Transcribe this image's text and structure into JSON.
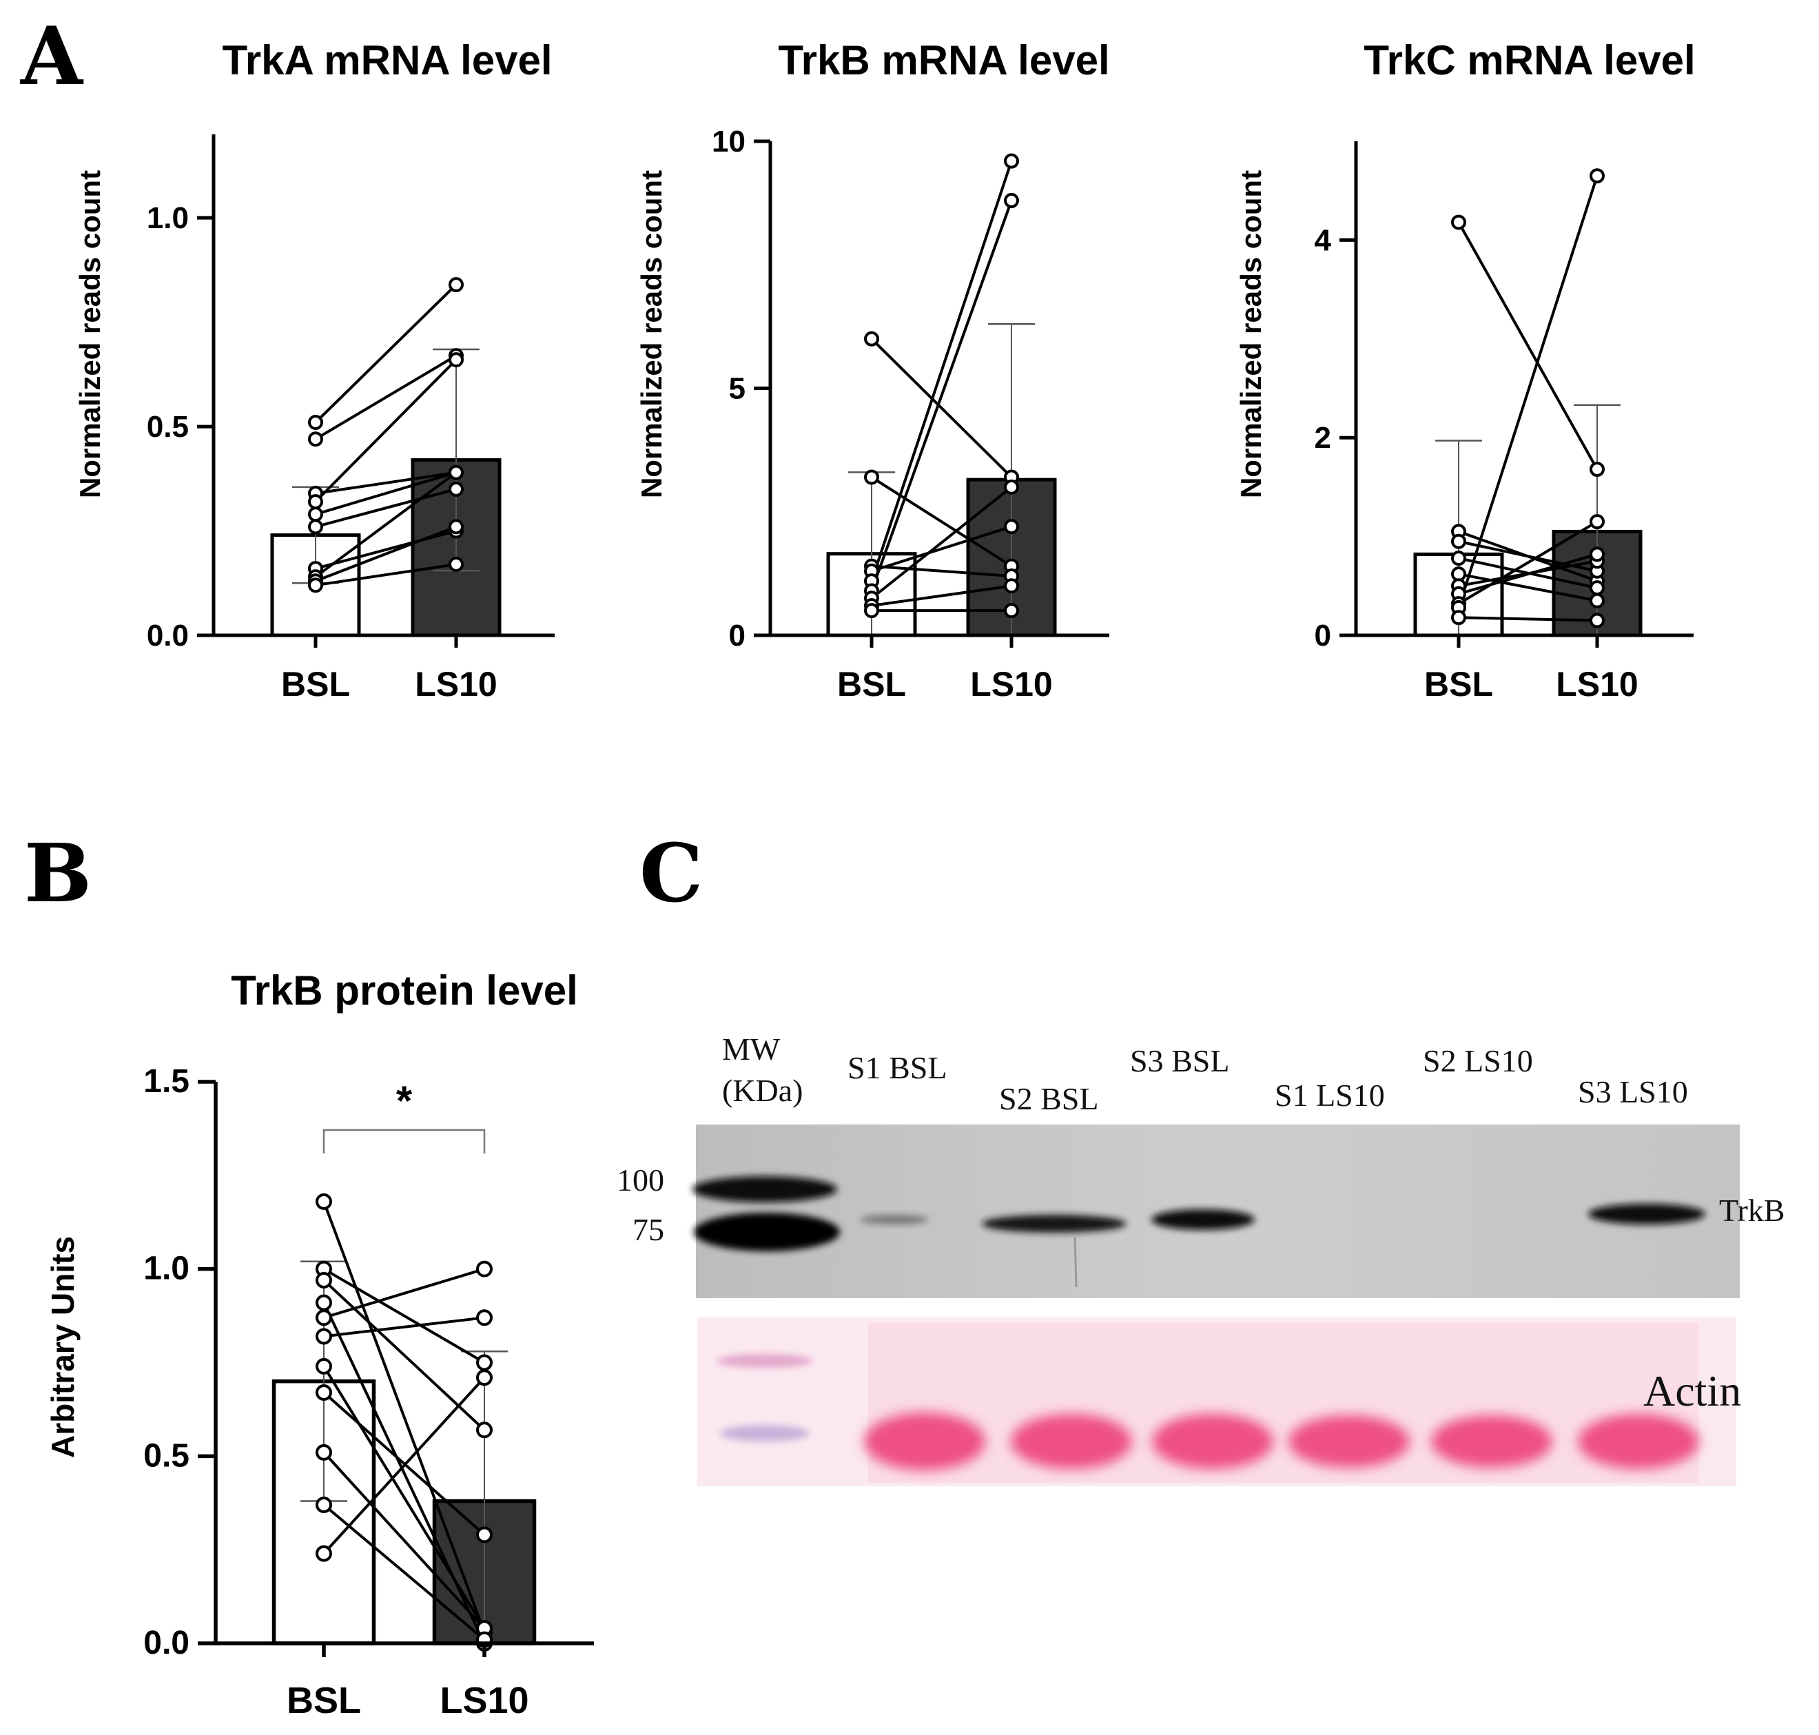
{
  "panel_labels": {
    "a": "A",
    "b": "B",
    "c": "C"
  },
  "colors": {
    "bsl_fill": "#ffffff",
    "ls10_fill": "#333333",
    "line": "#000000",
    "ponceau": "#ee4f86"
  },
  "chart_data": [
    {
      "id": "trka",
      "type": "bar",
      "title": "TrkA mRNA level",
      "xlabel": "",
      "ylabel": "Normalized reads count",
      "categories": [
        "BSL",
        "LS10"
      ],
      "ylim": [
        0,
        1.2
      ],
      "yticks": [
        0,
        0.5,
        1.0
      ],
      "ytick_labels": [
        "0.0",
        "0.5",
        "1.0"
      ],
      "means": [
        0.24,
        0.42
      ],
      "sd": [
        0.115,
        0.265
      ],
      "pairs": [
        [
          0.51,
          0.84
        ],
        [
          0.47,
          0.67
        ],
        [
          0.34,
          0.39
        ],
        [
          0.32,
          0.66
        ],
        [
          0.29,
          0.39
        ],
        [
          0.26,
          0.35
        ],
        [
          0.16,
          0.25
        ],
        [
          0.14,
          0.39
        ],
        [
          0.13,
          0.26
        ],
        [
          0.12,
          0.17
        ]
      ],
      "significance": ""
    },
    {
      "id": "trkb",
      "type": "bar",
      "title": "TrkB mRNA level",
      "xlabel": "",
      "ylabel": "Normalized reads count",
      "categories": [
        "BSL",
        "LS10"
      ],
      "ylim": [
        0,
        10
      ],
      "yticks": [
        0,
        5,
        10
      ],
      "ytick_labels": [
        "0",
        "5",
        "10"
      ],
      "means": [
        1.65,
        3.15
      ],
      "sd": [
        1.65,
        3.15
      ],
      "pairs": [
        [
          6.0,
          3.2
        ],
        [
          3.2,
          1.4
        ],
        [
          1.4,
          1.2
        ],
        [
          1.3,
          2.2
        ],
        [
          1.1,
          9.6
        ],
        [
          0.9,
          8.8
        ],
        [
          0.75,
          3.0
        ],
        [
          0.6,
          1.0
        ],
        [
          0.5,
          0.5
        ]
      ],
      "significance": ""
    },
    {
      "id": "trkc",
      "type": "bar",
      "title": "TrkC mRNA level",
      "xlabel": "",
      "ylabel": "Normalized reads count",
      "categories": [
        "BSL",
        "LS10"
      ],
      "ylim": [
        0,
        5
      ],
      "yticks": [
        0,
        2,
        4
      ],
      "ytick_labels": [
        "0",
        "2",
        "4"
      ],
      "means": [
        0.82,
        1.05
      ],
      "sd": [
        1.15,
        1.28
      ],
      "pairs": [
        [
          4.18,
          1.68
        ],
        [
          1.05,
          0.55
        ],
        [
          0.95,
          0.65
        ],
        [
          0.78,
          0.48
        ],
        [
          0.62,
          0.35
        ],
        [
          0.5,
          0.75
        ],
        [
          0.42,
          0.82
        ],
        [
          0.32,
          1.15
        ],
        [
          0.28,
          4.65
        ],
        [
          0.18,
          0.15
        ]
      ],
      "significance": ""
    },
    {
      "id": "trkb_protein",
      "type": "bar",
      "title": "TrkB protein level",
      "xlabel": "",
      "ylabel": "Arbitrary Units",
      "categories": [
        "BSL",
        "LS10"
      ],
      "ylim": [
        0,
        1.5
      ],
      "yticks": [
        0,
        0.5,
        1.0,
        1.5
      ],
      "ytick_labels": [
        "0.0",
        "0.5",
        "1.0",
        "1.5"
      ],
      "means": [
        0.7,
        0.38
      ],
      "sd": [
        0.32,
        0.4
      ],
      "pairs": [
        [
          1.18,
          0.03
        ],
        [
          1.0,
          0.75
        ],
        [
          0.97,
          0.57
        ],
        [
          0.91,
          0.0
        ],
        [
          0.87,
          1.0
        ],
        [
          0.82,
          0.87
        ],
        [
          0.74,
          0.04
        ],
        [
          0.67,
          0.29
        ],
        [
          0.51,
          0.04
        ],
        [
          0.37,
          0.01
        ],
        [
          0.24,
          0.71
        ]
      ],
      "significance": "*"
    }
  ],
  "blot": {
    "mw_label_1": "MW",
    "mw_label_2": "(KDa)",
    "lanes": [
      "S1 BSL",
      "S2 BSL",
      "S3 BSL",
      "S1 LS10",
      "S2 LS10",
      "S3 LS10"
    ],
    "markers": [
      "100",
      "75"
    ],
    "band_label": "TrkB",
    "loading_label": "Actin"
  }
}
